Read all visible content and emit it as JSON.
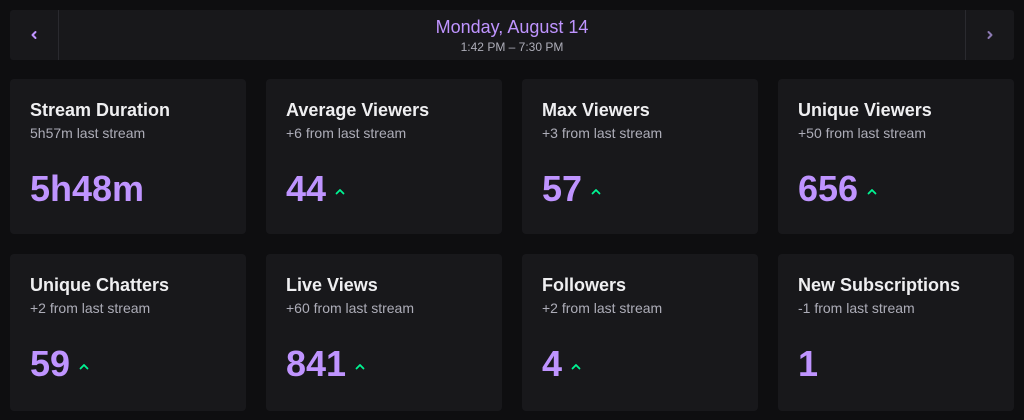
{
  "datebar": {
    "title": "Monday, August 14",
    "range": "1:42 PM – 7:30 PM"
  },
  "colors": {
    "accent": "#bf94ff",
    "up": "#00f593",
    "card_bg": "#18181b"
  },
  "cards": [
    {
      "title": "Stream Duration",
      "sub": "5h57m last stream",
      "value": "5h48m",
      "trend": "none"
    },
    {
      "title": "Average Viewers",
      "sub": "+6 from last stream",
      "value": "44",
      "trend": "up"
    },
    {
      "title": "Max Viewers",
      "sub": "+3 from last stream",
      "value": "57",
      "trend": "up"
    },
    {
      "title": "Unique Viewers",
      "sub": "+50 from last stream",
      "value": "656",
      "trend": "up"
    },
    {
      "title": "Unique Chatters",
      "sub": "+2 from last stream",
      "value": "59",
      "trend": "up"
    },
    {
      "title": "Live Views",
      "sub": "+60 from last stream",
      "value": "841",
      "trend": "up"
    },
    {
      "title": "Followers",
      "sub": "+2 from last stream",
      "value": "4",
      "trend": "up"
    },
    {
      "title": "New Subscriptions",
      "sub": "-1 from last stream",
      "value": "1",
      "trend": "none"
    }
  ]
}
